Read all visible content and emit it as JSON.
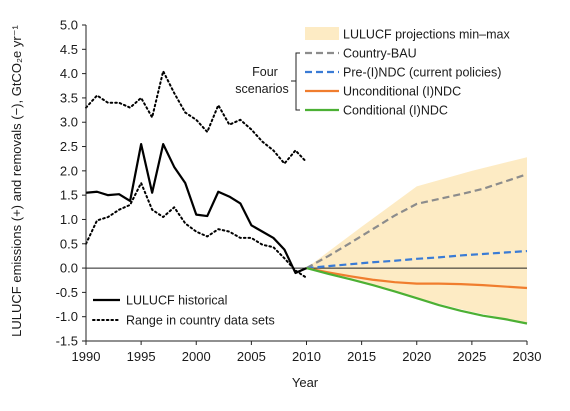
{
  "chart_data": {
    "type": "line",
    "xlabel": "Year",
    "ylabel": "LULUCF emissions (+) and removals (−), GtCO₂e yr⁻¹",
    "xlim": [
      1990,
      2030
    ],
    "ylim": [
      -1.5,
      5.0
    ],
    "x_ticks": [
      1990,
      1995,
      2000,
      2005,
      2010,
      2015,
      2020,
      2025,
      2030
    ],
    "y_ticks": [
      "5.0",
      "4.5",
      "4.0",
      "3.5",
      "3.0",
      "2.5",
      "2.0",
      "1.5",
      "1.0",
      "0.5",
      "0.0",
      "-0.5",
      "-1.0",
      "-1.5"
    ],
    "grid": false,
    "zero_line": true,
    "annotation": {
      "lines": [
        "Four",
        "scenarios"
      ]
    },
    "band": {
      "name": "LULUCF projections min–max",
      "color": "#fdebc4",
      "x": [
        2010,
        2015,
        2020,
        2025,
        2030
      ],
      "upper": [
        0.0,
        0.85,
        1.68,
        2.0,
        2.28
      ],
      "lower": [
        0.0,
        -0.3,
        -0.62,
        -0.9,
        -1.12
      ]
    },
    "series": [
      {
        "name": "Country-BAU",
        "color": "#8c8c8c",
        "style": "dashed",
        "x": [
          2010,
          2012,
          2014,
          2016,
          2018,
          2020,
          2022,
          2024,
          2026,
          2028,
          2030
        ],
        "y": [
          0.0,
          0.25,
          0.52,
          0.8,
          1.08,
          1.32,
          1.42,
          1.52,
          1.63,
          1.78,
          1.93
        ]
      },
      {
        "name": "Pre-(I)NDC (current policies)",
        "color": "#3a7bd5",
        "style": "dashed",
        "x": [
          2010,
          2012,
          2014,
          2016,
          2018,
          2020,
          2022,
          2024,
          2026,
          2028,
          2030
        ],
        "y": [
          0.0,
          0.04,
          0.08,
          0.12,
          0.15,
          0.19,
          0.22,
          0.26,
          0.29,
          0.32,
          0.35
        ]
      },
      {
        "name": "Unconditional (I)NDC",
        "color": "#f07d2e",
        "style": "solid",
        "x": [
          2010,
          2012,
          2014,
          2016,
          2018,
          2020,
          2022,
          2024,
          2026,
          2028,
          2030
        ],
        "y": [
          0.0,
          -0.09,
          -0.17,
          -0.24,
          -0.29,
          -0.32,
          -0.32,
          -0.33,
          -0.35,
          -0.38,
          -0.41
        ]
      },
      {
        "name": "Conditional (I)NDC",
        "color": "#4cb034",
        "style": "solid",
        "x": [
          2010,
          2012,
          2014,
          2016,
          2018,
          2020,
          2022,
          2024,
          2026,
          2028,
          2030
        ],
        "y": [
          0.0,
          -0.12,
          -0.23,
          -0.35,
          -0.48,
          -0.62,
          -0.76,
          -0.88,
          -0.98,
          -1.05,
          -1.14
        ]
      },
      {
        "name": "LULUCF historical",
        "color": "#000000",
        "style": "solid",
        "x": [
          1990,
          1991,
          1992,
          1993,
          1994,
          1995,
          1996,
          1997,
          1998,
          1999,
          2000,
          2001,
          2002,
          2003,
          2004,
          2005,
          2006,
          2007,
          2008,
          2009,
          2010
        ],
        "y": [
          1.55,
          1.57,
          1.5,
          1.52,
          1.38,
          2.55,
          1.55,
          2.55,
          2.08,
          1.75,
          1.1,
          1.07,
          1.57,
          1.47,
          1.33,
          0.88,
          0.75,
          0.62,
          0.38,
          -0.1,
          0.0
        ]
      },
      {
        "name": "Range in country data sets",
        "color": "#000000",
        "style": "dotted",
        "part": "upper",
        "x": [
          1990,
          1991,
          1992,
          1993,
          1994,
          1995,
          1996,
          1997,
          1998,
          1999,
          2000,
          2001,
          2002,
          2003,
          2004,
          2005,
          2006,
          2007,
          2008,
          2009,
          2010
        ],
        "y": [
          3.3,
          3.55,
          3.4,
          3.4,
          3.3,
          3.5,
          3.1,
          4.05,
          3.6,
          3.2,
          3.05,
          2.8,
          3.35,
          2.95,
          3.05,
          2.85,
          2.6,
          2.42,
          2.15,
          2.42,
          2.18
        ]
      },
      {
        "name": "Range in country data sets",
        "color": "#000000",
        "style": "dotted",
        "part": "lower",
        "x": [
          1990,
          1991,
          1992,
          1993,
          1994,
          1995,
          1996,
          1997,
          1998,
          1999,
          2000,
          2001,
          2002,
          2003,
          2004,
          2005,
          2006,
          2007,
          2008,
          2009,
          2010
        ],
        "y": [
          0.5,
          0.98,
          1.05,
          1.2,
          1.3,
          1.75,
          1.2,
          1.05,
          1.25,
          0.92,
          0.75,
          0.65,
          0.8,
          0.75,
          0.62,
          0.62,
          0.48,
          0.43,
          0.2,
          -0.05,
          -0.2
        ]
      }
    ],
    "legend_top": {
      "placement": "top-right",
      "items": [
        {
          "label": "LULUCF projections min–max",
          "kind": "band"
        },
        {
          "label": "Country-BAU",
          "kind": "series",
          "series": 0
        },
        {
          "label": "Pre-(I)NDC (current policies)",
          "kind": "series",
          "series": 1
        },
        {
          "label": "Unconditional (I)NDC",
          "kind": "series",
          "series": 2
        },
        {
          "label": "Conditional (I)NDC",
          "kind": "series",
          "series": 3
        }
      ]
    },
    "legend_bottom": {
      "placement": "bottom-left",
      "items": [
        {
          "label": "LULUCF historical",
          "series": 4
        },
        {
          "label": "Range in country data sets",
          "series": 5
        }
      ]
    }
  }
}
